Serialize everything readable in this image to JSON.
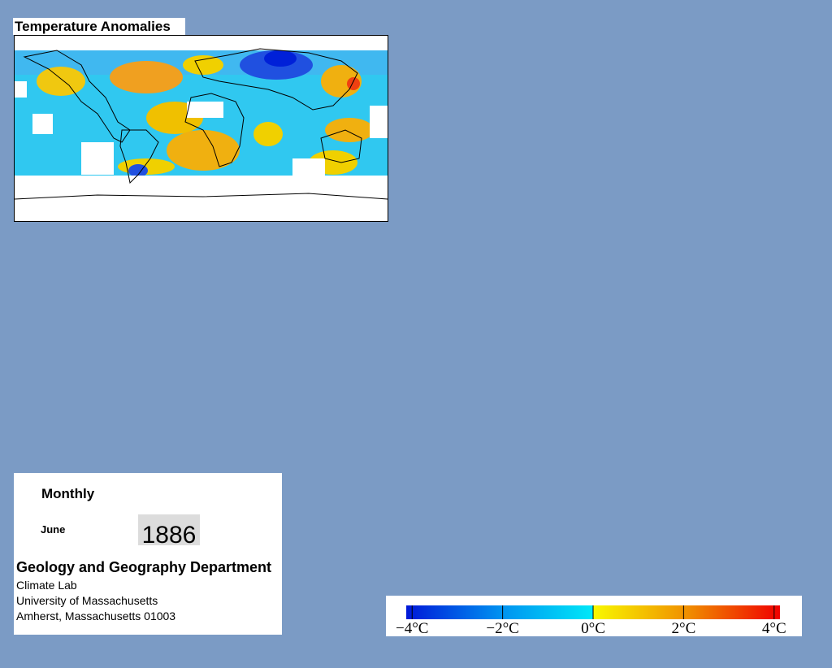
{
  "title": "Temperature Anomalies",
  "info": {
    "period": "Monthly",
    "month": "June",
    "year": "1886",
    "department": "Geology and Geography Department",
    "address": [
      "Climate Lab",
      "University of Massachusetts",
      "Amherst, Massachusetts 01003"
    ]
  },
  "colorbar": {
    "lim": [
      -4.13,
      4.13
    ],
    "ticks": [
      {
        "value": -4,
        "label": "−4°C"
      },
      {
        "value": -2,
        "label": "−2°C"
      },
      {
        "value": 0,
        "label": "0°C"
      },
      {
        "value": 2,
        "label": "2°C"
      },
      {
        "value": 4,
        "label": "4°C"
      }
    ]
  }
}
